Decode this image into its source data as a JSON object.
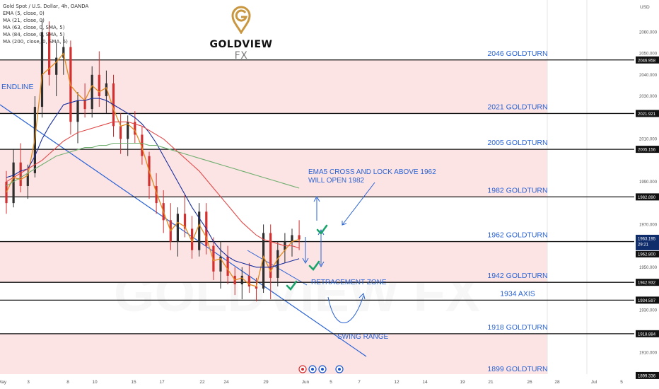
{
  "header": {
    "symbol_title": "Gold Spot / U.S. Dollar, 4h, OANDA",
    "indicators": [
      "EMA (5, close, 0)",
      "MA (21, close, 0)",
      "MA (63, close, 0, SMA, 5)",
      "MA (84, close, 0, SMA, 5)",
      "MA (200, close, 0, SMA, 5)"
    ]
  },
  "brand": {
    "name": "GOLDVIEW",
    "suffix": "FX",
    "watermark": "GOLDVIEW FX",
    "logo_icon": "goldview-pin-logo-icon",
    "logo_color": "#c9973f"
  },
  "colors": {
    "up_candle": "#2d2d2d",
    "down_candle": "#d32f2f",
    "zone_fill": "#fde4e4",
    "level_line": "#111111",
    "annotation_blue": "#2962d4",
    "check_green": "#1aa36a",
    "ema5": "#e28a1d",
    "ma21": "#1a2f9e",
    "ma63": "#e24a4a",
    "ma84": "#3a55c8",
    "ma200": "#6fae6f",
    "current_price_bg": "#0f2c6b"
  },
  "axis": {
    "currency": "USD",
    "current_price_label": "1963.195",
    "countdown_label": "29:21",
    "current_price_secondary": "1962.800"
  },
  "chart_data": {
    "type": "candlestick",
    "title": "Gold Spot / U.S. Dollar, 4h, OANDA",
    "ylabel": "USD",
    "ylim": [
      1897,
      2075
    ],
    "y_ticks": [
      {
        "label": "2060.000",
        "value": 2060
      },
      {
        "label": "2050.000",
        "value": 2050
      },
      {
        "label": "2040.000",
        "value": 2040
      },
      {
        "label": "2030.000",
        "value": 2030
      },
      {
        "label": "2010.000",
        "value": 2010
      },
      {
        "label": "1990.000",
        "value": 1990
      },
      {
        "label": "1970.000",
        "value": 1970
      },
      {
        "label": "1950.000",
        "value": 1950
      },
      {
        "label": "1930.000",
        "value": 1930
      },
      {
        "label": "1910.000",
        "value": 1910
      }
    ],
    "x_ticks": [
      "May",
      "3",
      "8",
      "10",
      "15",
      "17",
      "22",
      "24",
      "29",
      "Jun",
      "5",
      "7",
      "12",
      "14",
      "19",
      "21",
      "26",
      "28",
      "Jul",
      "5"
    ],
    "levels": [
      {
        "value": 2046.958,
        "price_label": "2046.958",
        "label": "2046 GOLDTURN"
      },
      {
        "value": 2021.921,
        "price_label": "2021.921",
        "label": "2021 GOLDTURN"
      },
      {
        "value": 2005.156,
        "price_label": "2005.156",
        "label": "2005 GOLDTURN"
      },
      {
        "value": 1982.89,
        "price_label": "1982.890",
        "label": "1982 GOLDTURN"
      },
      {
        "value": 1962.0,
        "price_label": "",
        "label": "1962 GOLDTURN"
      },
      {
        "value": 1942.932,
        "price_label": "1942.932",
        "label": "1942 GOLDTURN"
      },
      {
        "value": 1934.597,
        "price_label": "1934.597",
        "label": "1934 AXIS"
      },
      {
        "value": 1918.884,
        "price_label": "1918.884",
        "label": "1918 GOLDTURN"
      },
      {
        "value": 1899.336,
        "price_label": "1899.336",
        "label": "1899 GOLDTURN"
      }
    ],
    "zones": [
      [
        2021.921,
        2046.958
      ],
      [
        1982.89,
        2005.156
      ],
      [
        1942.932,
        1962.0
      ],
      [
        1899.336,
        1918.884
      ]
    ],
    "annotations": {
      "endline": "ENDLINE",
      "ema5_note_line1": "EMA5 CROSS AND LOCK ABOVE 1962",
      "ema5_note_line2": "WILL OPEN 1982",
      "retracement": "RETRACEMENT ZONE",
      "swing_range": "SWING RANGE"
    },
    "candles_ohlc": [
      [
        1990,
        1995,
        1975,
        1980
      ],
      [
        1980,
        2005,
        1978,
        1999
      ],
      [
        1999,
        2008,
        1985,
        1988
      ],
      [
        1988,
        1998,
        1982,
        1994
      ],
      [
        1994,
        2030,
        1992,
        2025
      ],
      [
        2025,
        2066,
        2020,
        2060
      ],
      [
        2060,
        2065,
        2035,
        2040
      ],
      [
        2040,
        2055,
        2030,
        2048
      ],
      [
        2048,
        2058,
        2040,
        2053
      ],
      [
        2053,
        2056,
        2012,
        2018
      ],
      [
        2018,
        2032,
        2008,
        2028
      ],
      [
        2028,
        2036,
        2020,
        2024
      ],
      [
        2024,
        2044,
        2020,
        2040
      ],
      [
        2040,
        2051,
        2025,
        2030
      ],
      [
        2030,
        2042,
        2022,
        2036
      ],
      [
        2036,
        2040,
        2011,
        2016
      ],
      [
        2016,
        2022,
        2003,
        2010
      ],
      [
        2010,
        2021,
        2002,
        2018
      ],
      [
        2018,
        2023,
        2008,
        2012
      ],
      [
        2012,
        2016,
        1998,
        2002
      ],
      [
        2002,
        2004,
        1982,
        1988
      ],
      [
        1988,
        1994,
        1975,
        1980
      ],
      [
        1980,
        1986,
        1966,
        1972
      ],
      [
        1972,
        1980,
        1958,
        1962
      ],
      [
        1962,
        1978,
        1955,
        1975
      ],
      [
        1975,
        1984,
        1964,
        1968
      ],
      [
        1968,
        1974,
        1954,
        1958
      ],
      [
        1958,
        1980,
        1955,
        1976
      ],
      [
        1976,
        1980,
        1956,
        1960
      ],
      [
        1960,
        1964,
        1944,
        1948
      ],
      [
        1948,
        1962,
        1940,
        1955
      ],
      [
        1955,
        1960,
        1942,
        1946
      ],
      [
        1946,
        1950,
        1937,
        1942
      ],
      [
        1942,
        1950,
        1935,
        1946
      ],
      [
        1946,
        1952,
        1938,
        1941
      ],
      [
        1941,
        1945,
        1934,
        1940
      ],
      [
        1940,
        1970,
        1938,
        1966
      ],
      [
        1966,
        1970,
        1935,
        1945
      ],
      [
        1945,
        1962,
        1941,
        1958
      ],
      [
        1958,
        1966,
        1952,
        1962
      ],
      [
        1962,
        1968,
        1955,
        1965
      ],
      [
        1965,
        1972,
        1958,
        1963
      ]
    ],
    "moving_averages": [
      {
        "name": "EMA (5, close, 0)",
        "color": "#e28a1d",
        "values": [
          1985,
          1992,
          1991,
          1993,
          2010,
          2040,
          2043,
          2046,
          2050,
          2035,
          2031,
          2028,
          2035,
          2032,
          2034,
          2024,
          2016,
          2017,
          2014,
          2006,
          1995,
          1985,
          1976,
          1967,
          1971,
          1969,
          1962,
          1970,
          1964,
          1953,
          1954,
          1949,
          1944,
          1945,
          1942,
          1941,
          1955,
          1948,
          1954,
          1958,
          1962,
          1963
        ]
      },
      {
        "name": "MA (21, close, 0)",
        "color": "#1a2f9e",
        "values": [
          1992,
          1993,
          1995,
          1996,
          2002,
          2010,
          2016,
          2021,
          2026,
          2027,
          2028,
          2028,
          2029,
          2029,
          2028,
          2026,
          2024,
          2022,
          2020,
          2017,
          2013,
          2008,
          2002,
          1996,
          1990,
          1984,
          1978,
          1973,
          1968,
          1962,
          1958,
          1955,
          1953,
          1952,
          1951,
          1950,
          1950,
          1950,
          1951,
          1952,
          1953,
          1954
        ]
      },
      {
        "name": "MA (63, close, 0, SMA, 5)",
        "color": "#e24a4a",
        "values": [
          1990,
          1992,
          1994,
          1996,
          1998,
          2000,
          2003,
          2006,
          2009,
          2011,
          2013,
          2014,
          2015,
          2016,
          2017,
          2018,
          2018,
          2018,
          2017,
          2016,
          2014,
          2012,
          2010,
          2007,
          2004,
          2001,
          1998,
          1995,
          1991,
          1987,
          1983,
          1979,
          1975,
          1971,
          1968,
          1965,
          1963,
          1962,
          1961,
          1960,
          1960,
          1959
        ]
      },
      {
        "name": "MA (200, close, 0, SMA, 5)",
        "color": "#6fae6f",
        "values": [
          1988,
          1990,
          1992,
          1994,
          1996,
          1998,
          2000,
          2002,
          2003,
          2004,
          2005,
          2006,
          2006,
          2007,
          2007,
          2008,
          2008,
          2008,
          2008,
          2008,
          2007,
          2007,
          2006,
          2005,
          2004,
          2003,
          2002,
          2001,
          2000,
          1999,
          1998,
          1997,
          1996,
          1995,
          1994,
          1993,
          1992,
          1991,
          1990,
          1989,
          1988,
          1987
        ]
      }
    ]
  }
}
